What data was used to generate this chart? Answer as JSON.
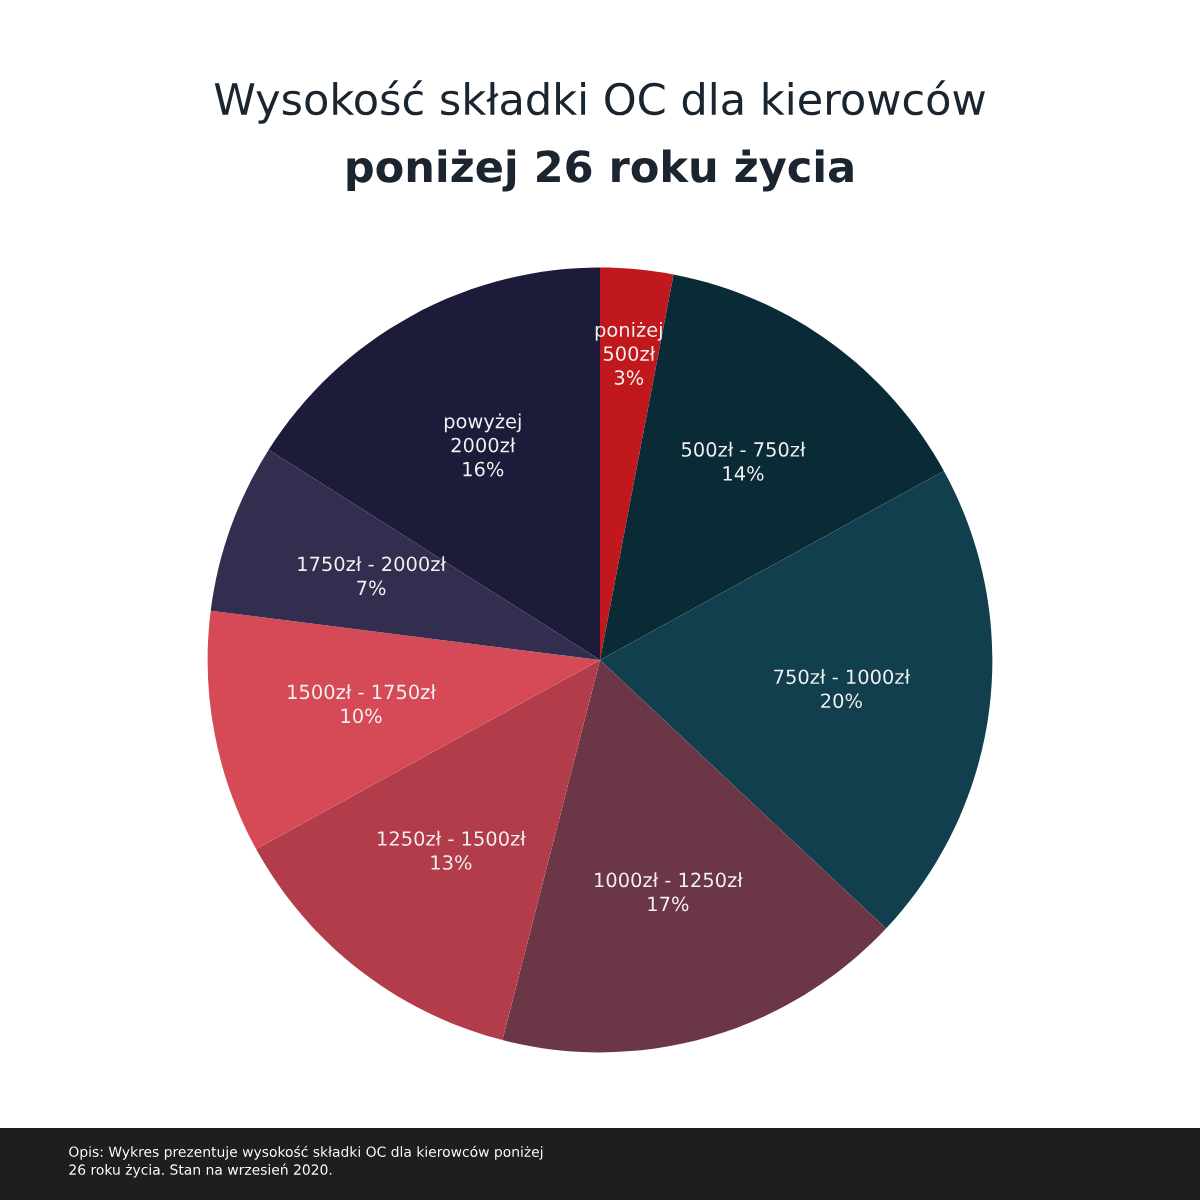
{
  "chart_data": {
    "type": "pie",
    "title": "Wysokość składki OC dla kierowców\nponiżej 26 roku życia",
    "categories": [
      "poniżej\n500zł",
      "500zł - 750zł",
      "750zł - 1000zł",
      "1000zł - 1250zł",
      "1250zł - 1500zł",
      "1500zł - 1750zł",
      "1750zł - 2000zł",
      "powyżej\n2000zł"
    ],
    "values": [
      3,
      14,
      20,
      17,
      13,
      10,
      7,
      16
    ],
    "value_labels": [
      "3%",
      "14%",
      "20%",
      "17%",
      "13%",
      "10%",
      "7%",
      "16%"
    ],
    "colors": [
      "#c0181c",
      "#0a2a36",
      "#123f4d",
      "#6b3645",
      "#b23c49",
      "#d64a57",
      "#332e4f",
      "#1c1b3a"
    ],
    "annotations": [
      "Opis: Wykres prezentuje wysokość składki OC dla kierowców poniżej\n26 roku życia. Stan na wrzesień 2020."
    ]
  }
}
